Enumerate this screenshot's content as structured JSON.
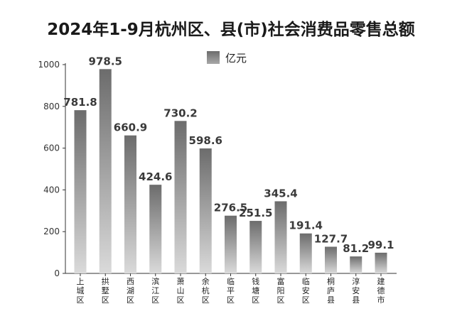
{
  "title": "2024年1-9月杭州区、县(市)社会消费品零售总额",
  "legend": {
    "label": "亿元"
  },
  "chart_data": {
    "type": "bar",
    "title": "2024年1-9月杭州区、县(市)社会消费品零售总额",
    "unit": "亿元",
    "categories": [
      "上城区",
      "拱墅区",
      "西湖区",
      "滨江区",
      "萧山区",
      "余杭区",
      "临平区",
      "钱塘区",
      "富阳区",
      "临安区",
      "桐庐县",
      "淳安县",
      "建德市"
    ],
    "values": [
      781.8,
      978.5,
      660.9,
      424.6,
      730.2,
      598.6,
      276.5,
      251.5,
      345.4,
      191.4,
      127.7,
      81.2,
      99.1
    ],
    "value_labels": [
      "781.8",
      "978.5",
      "660.9",
      "424.6",
      "730.2",
      "598.6",
      "276.5",
      "251.5",
      "345.4",
      "191.4",
      "127.7",
      "81.2",
      "99.1"
    ],
    "yticks": [
      "0",
      "200",
      "400",
      "600",
      "800",
      "1000"
    ],
    "ylim": [
      0,
      1000
    ],
    "grid": false,
    "legend_position": "top-center",
    "bar_color_top": "#6c6c6c",
    "bar_color_bottom": "#dadada"
  }
}
